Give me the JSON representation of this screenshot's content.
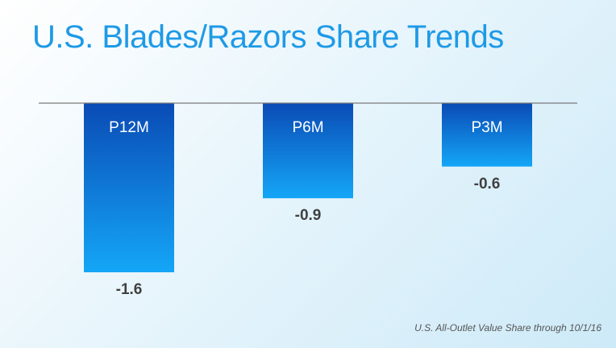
{
  "slide": {
    "title": "U.S. Blades/Razors Share Trends",
    "footnote": "U.S. All-Outlet Value Share through 10/1/16"
  },
  "colors": {
    "title": "#1e9ae6",
    "bar_top": "#0a4bb5",
    "bar_bottom": "#14a6f7",
    "baseline": "#7a7a7a",
    "value_label": "#404040"
  },
  "chart_data": {
    "type": "bar",
    "categories": [
      "P12M",
      "P6M",
      "P3M"
    ],
    "values": [
      -1.6,
      -0.9,
      -0.6
    ],
    "value_labels": [
      "-1.6",
      "-0.9",
      "-0.6"
    ],
    "category_label_position": "inside-top",
    "ylim": [
      -1.6,
      0
    ],
    "grid": false,
    "legend": "none"
  }
}
